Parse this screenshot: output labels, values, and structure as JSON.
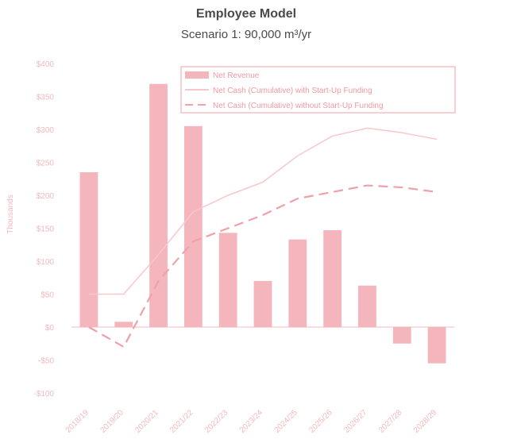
{
  "chart_data": {
    "type": "bar",
    "title": "Employee Model",
    "subtitle": "Scenario 1: 90,000 m³/yr",
    "ylabel": "Thousands",
    "xlabel": "",
    "categories": [
      "2018/19",
      "2019/20",
      "2020/21",
      "2021/22",
      "2022/23",
      "2023/24",
      "2024/25",
      "2025/26",
      "2026/27",
      "2027/28",
      "2028/29"
    ],
    "ylim": [
      -100,
      400
    ],
    "y_ticks": [
      -100,
      -50,
      0,
      50,
      100,
      150,
      200,
      250,
      300,
      350,
      400
    ],
    "y_tick_labels": [
      "-$100",
      "-$50",
      "$0",
      "$50",
      "$100",
      "$150",
      "$200",
      "$250",
      "$300",
      "$350",
      "$400"
    ],
    "series": [
      {
        "name": "Net Revenue",
        "type": "bar",
        "color": "#f4b6bc",
        "values": [
          235,
          8,
          369,
          305,
          143,
          70,
          133,
          147,
          63,
          -25,
          -55
        ]
      },
      {
        "name": "Net Cash (Cumulative) with Start-Up Funding",
        "type": "line",
        "style": "solid",
        "color": "#f7c7cc",
        "values": [
          50,
          50,
          110,
          175,
          200,
          220,
          260,
          290,
          302,
          295,
          285
        ]
      },
      {
        "name": "Net Cash (Cumulative) without Start-Up Funding",
        "type": "line",
        "style": "dashed",
        "color": "#f0a0a8",
        "values": [
          0,
          -30,
          70,
          130,
          150,
          170,
          195,
          205,
          215,
          212,
          205
        ]
      }
    ],
    "legend_position": "top-right",
    "grid": false
  }
}
